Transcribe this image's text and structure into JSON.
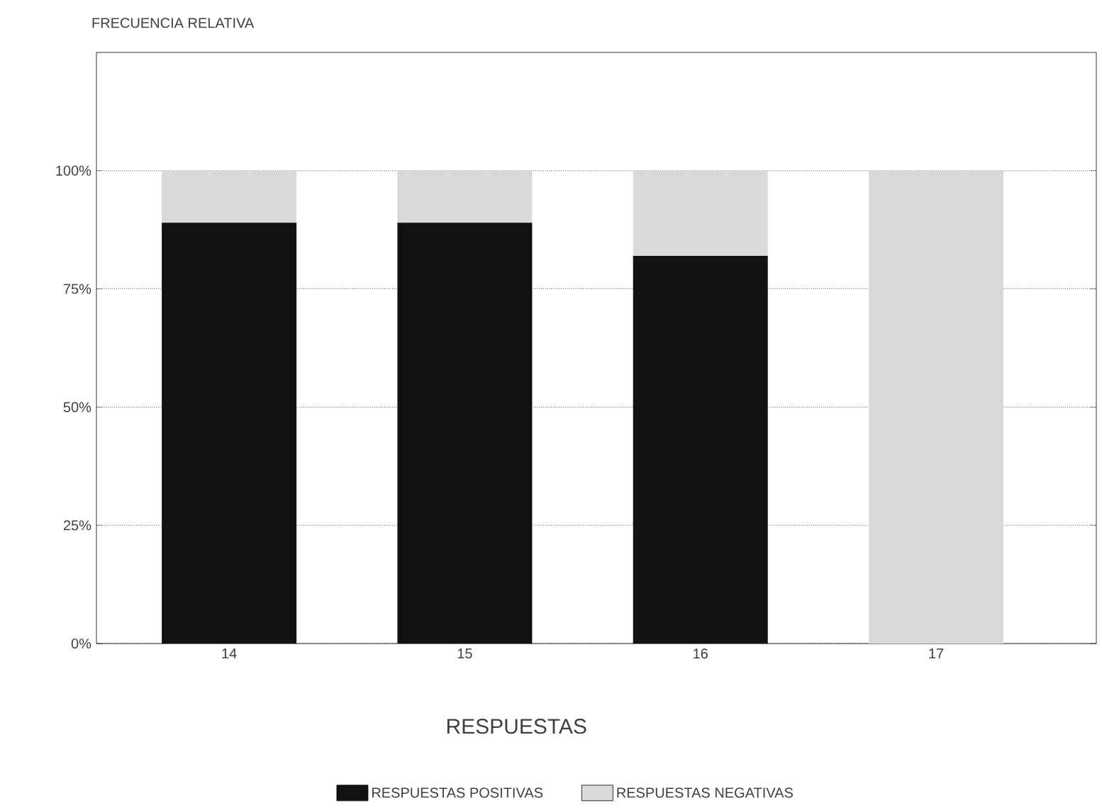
{
  "chart_data": {
    "type": "bar",
    "stacked": true,
    "ylabel": "FRECUENCIA RELATIVA",
    "xlabel": "RESPUESTAS",
    "categories": [
      "14",
      "15",
      "16",
      "17"
    ],
    "series": [
      {
        "name": "RESPUESTAS POSITIVAS",
        "color": "#111111",
        "values": [
          89,
          89,
          82,
          0
        ]
      },
      {
        "name": "RESPUESTAS NEGATIVAS",
        "color": "#d9d9d9",
        "values": [
          11,
          11,
          18,
          100
        ]
      }
    ],
    "ylim": [
      0,
      125
    ],
    "yticks": [
      {
        "value": 0,
        "label": "0%"
      },
      {
        "value": 25,
        "label": "25%"
      },
      {
        "value": 50,
        "label": "50%"
      },
      {
        "value": 75,
        "label": "75%"
      },
      {
        "value": 100,
        "label": "100%"
      }
    ],
    "grid": "y",
    "legend": "bottom"
  }
}
